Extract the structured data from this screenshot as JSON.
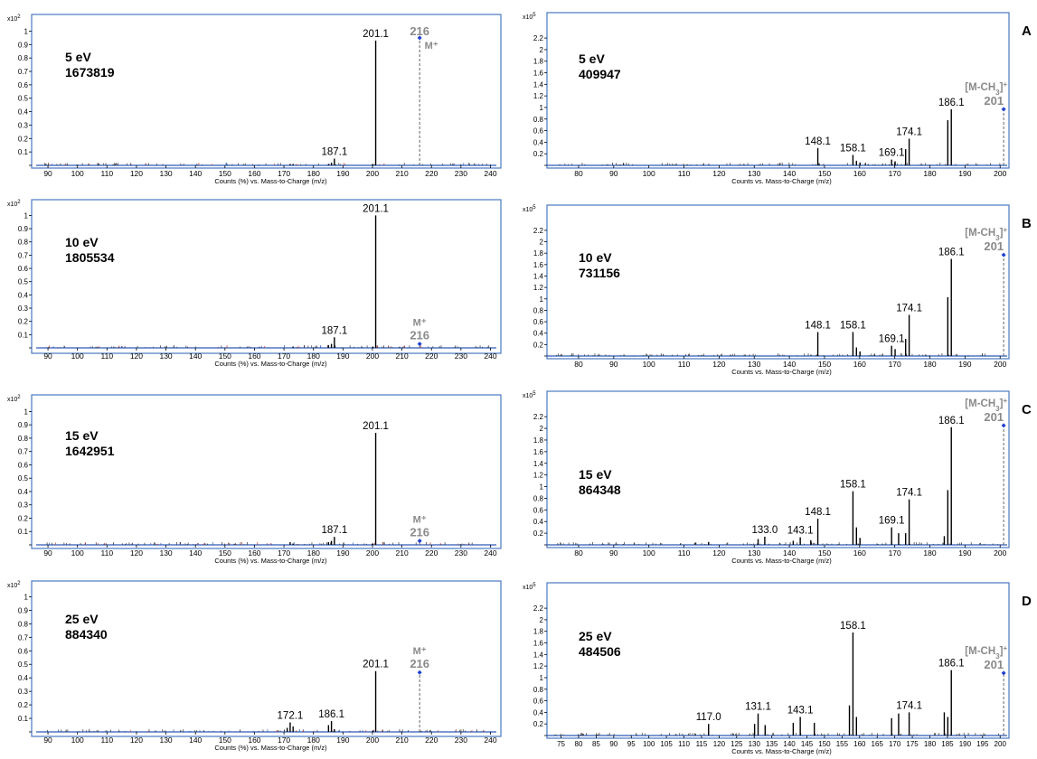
{
  "chart_data": [
    {
      "type": "bar",
      "panel": "left-1",
      "y_multiplier": "x10",
      "y_multiplier_exp": "2",
      "energy_label": "5 eV",
      "count_label": "1673819",
      "xlabel": "Counts (%) vs. Mass-to-Charge (m/z)",
      "xlim": [
        86,
        242
      ],
      "ylim": [
        0,
        1.03
      ],
      "xticks": [
        90,
        100,
        110,
        120,
        130,
        140,
        150,
        160,
        170,
        180,
        190,
        200,
        210,
        220,
        230,
        240
      ],
      "yticks": [
        0.1,
        0.2,
        0.3,
        0.4,
        0.5,
        0.6,
        0.7,
        0.8,
        0.9,
        1
      ],
      "peaks": [
        {
          "x": 201.1,
          "y": 0.93,
          "label": "201.1"
        },
        {
          "x": 187.1,
          "y": 0.05,
          "label": "187.1"
        },
        {
          "x": 186.1,
          "y": 0.02
        },
        {
          "x": 185.1,
          "y": 0.01
        },
        {
          "x": 200.1,
          "y": 0.01
        },
        {
          "x": 173.1,
          "y": 0.01
        },
        {
          "x": 172.1,
          "y": 0.01
        }
      ],
      "marker": {
        "x": 216,
        "y": 0.95,
        "label_top": "216",
        "label_side": "M⁺",
        "label_layout": "above-right"
      }
    },
    {
      "type": "bar",
      "panel": "left-2",
      "y_multiplier": "x10",
      "y_multiplier_exp": "2",
      "energy_label": "10 eV",
      "count_label": "1805534",
      "xlabel": "Counts (%) vs. Mass-to-Charge (m/z)",
      "xlim": [
        86,
        242
      ],
      "ylim": [
        0,
        1.03
      ],
      "xticks": [
        90,
        100,
        110,
        120,
        130,
        140,
        150,
        160,
        170,
        180,
        190,
        200,
        210,
        220,
        230,
        240
      ],
      "yticks": [
        0.1,
        0.2,
        0.3,
        0.4,
        0.5,
        0.6,
        0.7,
        0.8,
        0.9,
        1
      ],
      "peaks": [
        {
          "x": 201.1,
          "y": 1.0,
          "label": "201.1"
        },
        {
          "x": 187.1,
          "y": 0.08,
          "label": "187.1"
        },
        {
          "x": 186.1,
          "y": 0.03
        },
        {
          "x": 185.1,
          "y": 0.02
        },
        {
          "x": 200.1,
          "y": 0.01
        },
        {
          "x": 173.1,
          "y": 0.01
        }
      ],
      "marker": {
        "x": 216,
        "y": 0.03,
        "label_top": "M⁺",
        "label_side": "216",
        "label_layout": "stack-above"
      }
    },
    {
      "type": "bar",
      "panel": "left-3",
      "y_multiplier": "x10",
      "y_multiplier_exp": "2",
      "energy_label": "15 eV",
      "count_label": "1642951",
      "xlabel": "Counts (%) vs. Mass-to-Charge (m/z)",
      "xlim": [
        86,
        242
      ],
      "ylim": [
        0,
        1.03
      ],
      "xticks": [
        90,
        100,
        110,
        120,
        130,
        140,
        150,
        160,
        170,
        180,
        190,
        200,
        210,
        220,
        230,
        240
      ],
      "yticks": [
        0.1,
        0.2,
        0.3,
        0.4,
        0.5,
        0.6,
        0.7,
        0.8,
        0.9,
        1
      ],
      "peaks": [
        {
          "x": 201.1,
          "y": 0.84,
          "label": "201.1"
        },
        {
          "x": 187.1,
          "y": 0.06,
          "label": "187.1"
        },
        {
          "x": 186.1,
          "y": 0.03
        },
        {
          "x": 185.1,
          "y": 0.02
        },
        {
          "x": 200.1,
          "y": 0.01
        },
        {
          "x": 172.1,
          "y": 0.02
        },
        {
          "x": 173.1,
          "y": 0.01
        }
      ],
      "marker": {
        "x": 216,
        "y": 0.03,
        "label_top": "M⁺",
        "label_side": "216",
        "label_layout": "stack-above"
      }
    },
    {
      "type": "bar",
      "panel": "left-4",
      "y_multiplier": "x10",
      "y_multiplier_exp": "2",
      "energy_label": "25 eV",
      "count_label": "884340",
      "xlabel": "Counts (%) vs. Mass-to-Charge (m/z)",
      "xlim": [
        86,
        242
      ],
      "ylim": [
        0,
        1.03
      ],
      "xticks": [
        90,
        100,
        110,
        120,
        130,
        140,
        150,
        160,
        170,
        180,
        190,
        200,
        210,
        220,
        230,
        240
      ],
      "yticks": [
        0.1,
        0.2,
        0.3,
        0.4,
        0.5,
        0.6,
        0.7,
        0.8,
        0.9,
        1
      ],
      "peaks": [
        {
          "x": 201.1,
          "y": 0.45,
          "label": "201.1"
        },
        {
          "x": 186.1,
          "y": 0.08,
          "label": "186.1"
        },
        {
          "x": 185.1,
          "y": 0.05
        },
        {
          "x": 172.1,
          "y": 0.07,
          "label": "172.1"
        },
        {
          "x": 173.1,
          "y": 0.04
        },
        {
          "x": 171.1,
          "y": 0.03
        },
        {
          "x": 187.1,
          "y": 0.02
        },
        {
          "x": 200.1,
          "y": 0.01
        }
      ],
      "marker": {
        "x": 216,
        "y": 0.44,
        "label_top": "M⁺",
        "label_side": "216",
        "label_layout": "stack-above"
      }
    },
    {
      "type": "bar",
      "panel": "right-A",
      "panel_letter": "A",
      "y_multiplier": "x10",
      "y_multiplier_exp": "5",
      "energy_label": "5 eV",
      "count_label": "409947",
      "xlabel": "Counts vs. Mass-to-Charge (m/z)",
      "xlim": [
        71,
        202
      ],
      "ylim": [
        0,
        2.42
      ],
      "xticks": [
        80,
        90,
        100,
        110,
        120,
        130,
        140,
        150,
        160,
        170,
        180,
        190,
        200
      ],
      "yticks": [
        0.2,
        0.4,
        0.6,
        0.8,
        1,
        1.2,
        1.4,
        1.6,
        1.8,
        2,
        2.2
      ],
      "peaks": [
        {
          "x": 186.1,
          "y": 0.97,
          "label": "186.1"
        },
        {
          "x": 185.1,
          "y": 0.78
        },
        {
          "x": 174.1,
          "y": 0.46,
          "label": "174.1"
        },
        {
          "x": 173.1,
          "y": 0.28
        },
        {
          "x": 169.1,
          "y": 0.1,
          "label": "169.1"
        },
        {
          "x": 170.1,
          "y": 0.07
        },
        {
          "x": 158.1,
          "y": 0.18,
          "label": "158.1"
        },
        {
          "x": 159.1,
          "y": 0.08
        },
        {
          "x": 160.1,
          "y": 0.05
        },
        {
          "x": 148.1,
          "y": 0.3,
          "label": "148.1"
        }
      ],
      "marker": {
        "x": 201,
        "y": 0.97,
        "label_top": "[M-CH3]+",
        "label_side": "201",
        "label_layout": "stack-above-left"
      }
    },
    {
      "type": "bar",
      "panel": "right-B",
      "panel_letter": "B",
      "y_multiplier": "x10",
      "y_multiplier_exp": "5",
      "energy_label": "10 eV",
      "count_label": "731156",
      "xlabel": "Counts vs. Mass-to-Charge (m/z)",
      "xlim": [
        71,
        202
      ],
      "ylim": [
        0,
        2.42
      ],
      "xticks": [
        80,
        90,
        100,
        110,
        120,
        130,
        140,
        150,
        160,
        170,
        180,
        190,
        200
      ],
      "yticks": [
        0.2,
        0.4,
        0.6,
        0.8,
        1,
        1.2,
        1.4,
        1.6,
        1.8,
        2,
        2.2
      ],
      "peaks": [
        {
          "x": 186.1,
          "y": 1.7,
          "label": "186.1"
        },
        {
          "x": 185.1,
          "y": 1.03
        },
        {
          "x": 174.1,
          "y": 0.72,
          "label": "174.1"
        },
        {
          "x": 173.1,
          "y": 0.3
        },
        {
          "x": 169.1,
          "y": 0.18,
          "label": "169.1"
        },
        {
          "x": 170.1,
          "y": 0.12
        },
        {
          "x": 158.1,
          "y": 0.42,
          "label": "158.1"
        },
        {
          "x": 159.1,
          "y": 0.15
        },
        {
          "x": 160.1,
          "y": 0.08
        },
        {
          "x": 148.1,
          "y": 0.42,
          "label": "148.1"
        }
      ],
      "marker": {
        "x": 201,
        "y": 1.77,
        "label_top": "[M-CH3]+",
        "label_side": "201",
        "label_layout": "stack-above-left"
      }
    },
    {
      "type": "bar",
      "panel": "right-C",
      "panel_letter": "C",
      "y_multiplier": "x10",
      "y_multiplier_exp": "5",
      "energy_label": "15 eV",
      "count_label": "864348",
      "xlabel": "Counts vs. Mass-to-Charge (m/z)",
      "xlim": [
        71,
        202
      ],
      "ylim": [
        0,
        2.42
      ],
      "xticks": [
        80,
        90,
        100,
        110,
        120,
        130,
        140,
        150,
        160,
        170,
        180,
        190,
        200
      ],
      "yticks": [
        0.2,
        0.4,
        0.6,
        0.8,
        1,
        1.2,
        1.4,
        1.6,
        1.8,
        2,
        2.2
      ],
      "peaks": [
        {
          "x": 186.1,
          "y": 2.02,
          "label": "186.1"
        },
        {
          "x": 185.1,
          "y": 0.94
        },
        {
          "x": 184.1,
          "y": 0.15
        },
        {
          "x": 174.1,
          "y": 0.78,
          "label": "174.1"
        },
        {
          "x": 173.1,
          "y": 0.2
        },
        {
          "x": 169.1,
          "y": 0.3,
          "label": "169.1"
        },
        {
          "x": 171.1,
          "y": 0.2
        },
        {
          "x": 158.1,
          "y": 0.92,
          "label": "158.1"
        },
        {
          "x": 159.1,
          "y": 0.3
        },
        {
          "x": 160.1,
          "y": 0.12
        },
        {
          "x": 148.1,
          "y": 0.45,
          "label": "148.1"
        },
        {
          "x": 146.1,
          "y": 0.08
        },
        {
          "x": 143.1,
          "y": 0.13,
          "label": "143.1"
        },
        {
          "x": 141.1,
          "y": 0.07
        },
        {
          "x": 133.0,
          "y": 0.14,
          "label": "133.0"
        },
        {
          "x": 131.1,
          "y": 0.1
        },
        {
          "x": 117.0,
          "y": 0.05
        }
      ],
      "marker": {
        "x": 201,
        "y": 2.05,
        "label_top": "[M-CH3]+",
        "label_side": "201",
        "label_layout": "stack-above-left"
      }
    },
    {
      "type": "bar",
      "panel": "right-D",
      "panel_letter": "D",
      "y_multiplier": "x10",
      "y_multiplier_exp": "5",
      "energy_label": "25 eV",
      "count_label": "484506",
      "xlabel": "Counts vs. Mass-to-Charge (m/z)",
      "xlim": [
        71,
        202
      ],
      "ylim": [
        0,
        2.42
      ],
      "xticks": [
        75,
        80,
        85,
        90,
        95,
        100,
        105,
        110,
        115,
        120,
        125,
        130,
        135,
        140,
        145,
        150,
        155,
        160,
        165,
        170,
        175,
        180,
        185,
        190,
        195,
        200
      ],
      "yticks": [
        0.2,
        0.4,
        0.6,
        0.8,
        1,
        1.2,
        1.4,
        1.6,
        1.8,
        2,
        2.2
      ],
      "peaks": [
        {
          "x": 158.1,
          "y": 1.78,
          "label": "158.1"
        },
        {
          "x": 157.1,
          "y": 0.52
        },
        {
          "x": 159.1,
          "y": 0.32
        },
        {
          "x": 186.1,
          "y": 1.13,
          "label": "186.1"
        },
        {
          "x": 185.1,
          "y": 0.32
        },
        {
          "x": 184.1,
          "y": 0.4
        },
        {
          "x": 174.1,
          "y": 0.4,
          "label": "174.1"
        },
        {
          "x": 171.1,
          "y": 0.38
        },
        {
          "x": 169.1,
          "y": 0.3
        },
        {
          "x": 143.1,
          "y": 0.32,
          "label": "143.1"
        },
        {
          "x": 141.1,
          "y": 0.22
        },
        {
          "x": 147.1,
          "y": 0.22
        },
        {
          "x": 131.1,
          "y": 0.38,
          "label": "131.1"
        },
        {
          "x": 130.1,
          "y": 0.2
        },
        {
          "x": 133.1,
          "y": 0.18
        },
        {
          "x": 117.0,
          "y": 0.2,
          "label": "117.0"
        }
      ],
      "marker": {
        "x": 201,
        "y": 1.08,
        "label_top": "[M-CH3]+",
        "label_side": "201",
        "label_layout": "stack-above-left"
      }
    }
  ]
}
